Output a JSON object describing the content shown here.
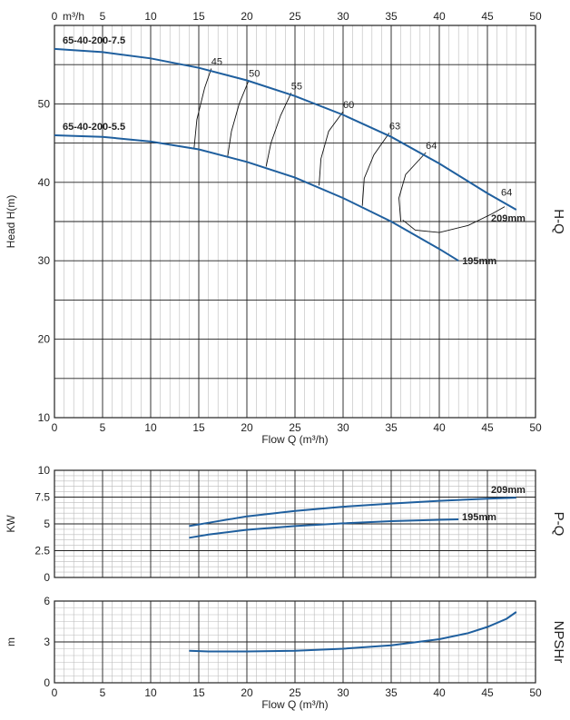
{
  "colors": {
    "curve": "#1f5f9e",
    "grid_major": "#222222",
    "grid_minor": "#bbbbbb",
    "text": "#222222"
  },
  "chart_data": [
    {
      "type": "line",
      "panel": "H-Q",
      "side_label": "H-Q",
      "top_axis_unit": "m³/h",
      "xlabel": "Flow Q (m³/h)",
      "ylabel": "Head H(m)",
      "xlim": [
        0,
        50
      ],
      "ylim": [
        10,
        60
      ],
      "x_ticks": [
        0,
        5,
        10,
        15,
        20,
        25,
        30,
        35,
        40,
        45,
        50
      ],
      "top_x_ticks": [
        5,
        10,
        15,
        20,
        25,
        30,
        35,
        40,
        45,
        50
      ],
      "top_zero_label": "0",
      "y_ticks": [
        10,
        20,
        30,
        40,
        50
      ],
      "grid": true,
      "series": [
        {
          "name": "65-40-200-7.5",
          "end_label": "209mm",
          "x": [
            0,
            5,
            10,
            15,
            20,
            25,
            30,
            35,
            40,
            45,
            48
          ],
          "y": [
            57,
            56.6,
            55.8,
            54.6,
            53.0,
            51.0,
            48.6,
            45.8,
            42.4,
            38.6,
            36.5
          ]
        },
        {
          "name": "65-40-200-5.5",
          "end_label": "195mm",
          "x": [
            0,
            5,
            10,
            15,
            20,
            25,
            30,
            35,
            40,
            42
          ],
          "y": [
            46,
            45.8,
            45.2,
            44.2,
            42.6,
            40.6,
            38.0,
            35.0,
            31.5,
            30.0
          ]
        }
      ],
      "efficiency_curves": [
        {
          "label": "45",
          "x": [
            14.5,
            14.8,
            15.6,
            16.3
          ],
          "y": [
            44.2,
            48,
            52,
            54.5
          ]
        },
        {
          "label": "50",
          "x": [
            18.0,
            18.4,
            19.2,
            20.2
          ],
          "y": [
            43.3,
            46.5,
            50,
            53.0
          ]
        },
        {
          "label": "55",
          "x": [
            22.0,
            22.5,
            23.5,
            24.6
          ],
          "y": [
            42.0,
            45,
            48.5,
            51.4
          ]
        },
        {
          "label": "60",
          "x": [
            27.5,
            27.7,
            28.5,
            30.0
          ],
          "y": [
            39.6,
            43,
            46.5,
            49.0
          ]
        },
        {
          "label": "63",
          "x": [
            32.0,
            32.2,
            33.2,
            34.8
          ],
          "y": [
            37.0,
            40.5,
            43.5,
            46.3
          ]
        },
        {
          "label": "64",
          "x": [
            36.0,
            35.8,
            36.5,
            38.6
          ],
          "y": [
            35.0,
            38,
            41,
            43.8
          ]
        },
        {
          "label": "64",
          "x": [
            36.2,
            37.5,
            40,
            43,
            45.5,
            46.8
          ],
          "y": [
            35.2,
            33.9,
            33.6,
            34.5,
            36.0,
            36.9
          ]
        }
      ]
    },
    {
      "type": "line",
      "panel": "P-Q",
      "side_label": "P-Q",
      "ylabel": "KW",
      "xlim": [
        0,
        50
      ],
      "ylim": [
        0,
        10
      ],
      "y_ticks": [
        0,
        2.5,
        5,
        7.5,
        10
      ],
      "y_tick_labels": [
        "0",
        "2.5",
        "5",
        "7.5",
        "10"
      ],
      "grid": true,
      "series": [
        {
          "end_label": "209mm",
          "x": [
            14,
            16,
            20,
            25,
            30,
            35,
            40,
            45,
            48
          ],
          "y": [
            4.8,
            5.1,
            5.7,
            6.2,
            6.6,
            6.9,
            7.15,
            7.35,
            7.45
          ]
        },
        {
          "end_label": "195mm",
          "x": [
            14,
            16,
            20,
            25,
            30,
            35,
            40,
            42
          ],
          "y": [
            3.7,
            4.0,
            4.45,
            4.8,
            5.05,
            5.25,
            5.38,
            5.42
          ]
        }
      ]
    },
    {
      "type": "line",
      "panel": "NPSHr",
      "side_label": "NPSHr",
      "xlabel": "Flow Q (m³/h)",
      "ylabel": "m",
      "xlim": [
        0,
        50
      ],
      "ylim": [
        0,
        6
      ],
      "x_ticks": [
        0,
        5,
        10,
        15,
        20,
        25,
        30,
        35,
        40,
        45,
        50
      ],
      "y_ticks": [
        0,
        3,
        6
      ],
      "grid": true,
      "series": [
        {
          "x": [
            14,
            16,
            20,
            25,
            30,
            35,
            40,
            43,
            45,
            47,
            48
          ],
          "y": [
            2.35,
            2.3,
            2.3,
            2.35,
            2.5,
            2.75,
            3.2,
            3.65,
            4.1,
            4.7,
            5.2
          ]
        }
      ]
    }
  ]
}
